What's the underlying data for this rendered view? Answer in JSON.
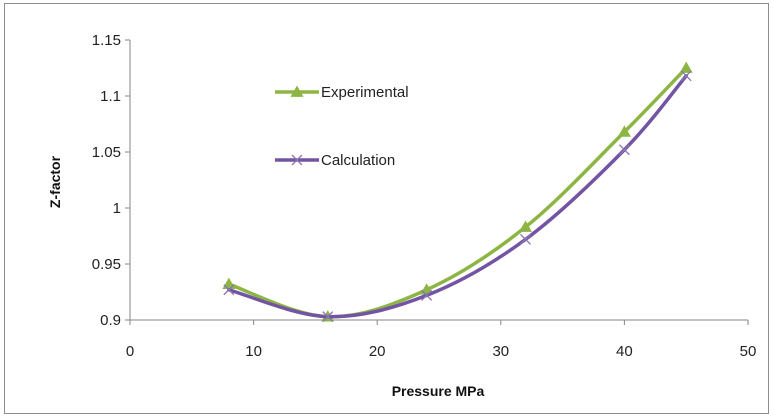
{
  "chart_data": {
    "type": "line",
    "title": "",
    "xlabel": "Pressure MPa",
    "ylabel": "Z-factor",
    "xlim": [
      0,
      50
    ],
    "ylim": [
      0.9,
      1.15
    ],
    "x_ticks": [
      "0",
      "10",
      "20",
      "30",
      "40",
      "50"
    ],
    "y_ticks": [
      "0.9",
      "0.95",
      "1",
      "1.05",
      "1.1",
      "1.15"
    ],
    "grid": false,
    "legend_placement": "upper-left inside plot",
    "series": [
      {
        "name": "Experimental",
        "color": "#8db544",
        "marker": "triangle",
        "x": [
          8,
          16,
          24,
          32,
          40,
          45
        ],
        "y": [
          0.932,
          0.903,
          0.927,
          0.983,
          1.068,
          1.125
        ]
      },
      {
        "name": "Calculation",
        "color": "#7353a3",
        "marker": "x",
        "x": [
          8,
          16,
          24,
          32,
          40,
          45
        ],
        "y": [
          0.927,
          0.903,
          0.922,
          0.972,
          1.052,
          1.118
        ]
      }
    ]
  }
}
